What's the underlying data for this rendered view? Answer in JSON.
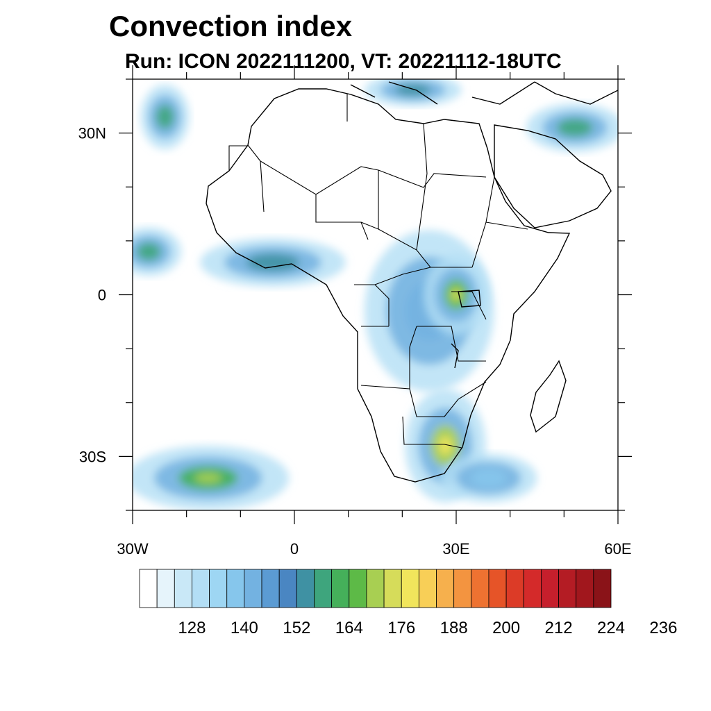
{
  "title": "Convection index",
  "subtitle": "Run: ICON 2022111200,  VT: 20221112-18UTC",
  "map": {
    "extent": {
      "lon_min": -30,
      "lon_max": 60,
      "lat_min": -40,
      "lat_max": 40
    },
    "lat_ticks": [
      {
        "value": 30,
        "label": "30N"
      },
      {
        "value": 0,
        "label": "0"
      },
      {
        "value": -30,
        "label": "30S"
      }
    ],
    "lon_ticks": [
      {
        "value": -30,
        "label": "30W"
      },
      {
        "value": 0,
        "label": "0"
      },
      {
        "value": 30,
        "label": "30E"
      },
      {
        "value": 60,
        "label": "60E"
      }
    ]
  },
  "colorbar": {
    "colors": [
      "#ffffff",
      "#e6f4fb",
      "#c9e8f7",
      "#b3def5",
      "#9ed6f3",
      "#86c6ec",
      "#73b2e1",
      "#5b9bd3",
      "#4a86c2",
      "#3f91a3",
      "#3ea57d",
      "#45b05a",
      "#5dba47",
      "#a8cf52",
      "#d6dc5a",
      "#f1e55c",
      "#f8cf57",
      "#f6b04d",
      "#f39440",
      "#ee7231",
      "#e65428",
      "#dc3b27",
      "#d42a2a",
      "#c61f2c",
      "#b41c24",
      "#a1171d",
      "#8a1318"
    ],
    "labels": [
      "128",
      "140",
      "152",
      "164",
      "176",
      "188",
      "200",
      "212",
      "224",
      "236"
    ]
  },
  "field_regions": [
    {
      "name": "north-atlantic-band",
      "lon": -24,
      "lat": 33,
      "rx": 3,
      "ry": 4,
      "level": 10
    },
    {
      "name": "west-africa-coast",
      "lon": -4,
      "lat": 6,
      "rx": 9,
      "ry": 3,
      "level": 9
    },
    {
      "name": "central-africa",
      "lon": 25,
      "lat": -3,
      "rx": 8,
      "ry": 10,
      "level": 6
    },
    {
      "name": "great-lakes",
      "lon": 30,
      "lat": 0,
      "rx": 4,
      "ry": 5,
      "level": 12
    },
    {
      "name": "mediterranean",
      "lon": 22,
      "lat": 38,
      "rx": 6,
      "ry": 2,
      "level": 9
    },
    {
      "name": "iran-gulf",
      "lon": 52,
      "lat": 31,
      "rx": 6,
      "ry": 3,
      "level": 10
    },
    {
      "name": "south-atlantic",
      "lon": -16,
      "lat": -34,
      "rx": 10,
      "ry": 4,
      "level": 11
    },
    {
      "name": "southern-africa",
      "lon": 28,
      "lat": -28,
      "rx": 5,
      "ry": 7,
      "level": 13
    },
    {
      "name": "mozambique-channel",
      "lon": 36,
      "lat": -34,
      "rx": 6,
      "ry": 3,
      "level": 5
    },
    {
      "name": "west-atlantic-eq",
      "lon": -27,
      "lat": 8,
      "rx": 4,
      "ry": 3,
      "level": 10
    }
  ]
}
